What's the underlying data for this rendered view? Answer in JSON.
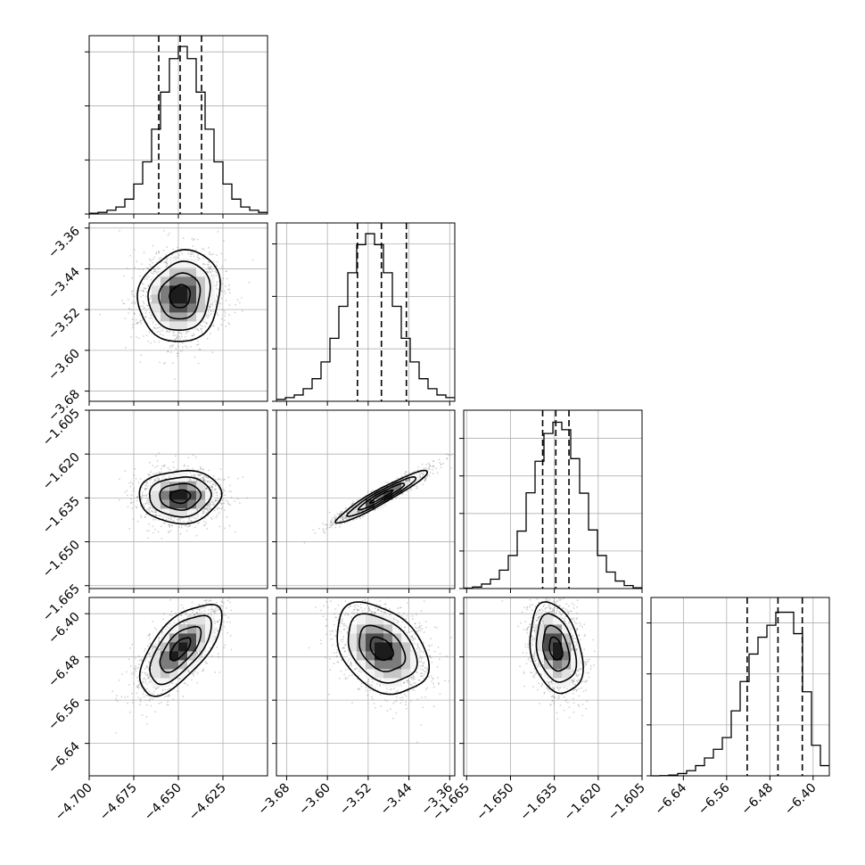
{
  "chart_data": {
    "type": "corner",
    "grid": true,
    "parameters": [
      {
        "range": [
          -4.7,
          -4.6
        ],
        "ticks": [
          -4.7,
          -4.675,
          -4.65,
          -4.625
        ],
        "tick_labels": [
          "−4.700",
          "−4.675",
          "−4.650",
          "−4.625"
        ],
        "mean": -4.649,
        "sd": 0.0115,
        "quantiles": [
          -4.661,
          -4.649,
          -4.637
        ]
      },
      {
        "range": [
          -3.7,
          -3.35
        ],
        "ticks": [
          -3.68,
          -3.6,
          -3.52,
          -3.44,
          -3.36
        ],
        "tick_labels": [
          "−3.68",
          "−3.60",
          "−3.52",
          "−3.44",
          "−3.36"
        ],
        "mean": -3.494,
        "sd": 0.045,
        "quantiles": [
          -3.541,
          -3.494,
          -3.445
        ]
      },
      {
        "range": [
          -1.666,
          -1.605
        ],
        "ticks": [
          -1.665,
          -1.65,
          -1.635,
          -1.62,
          -1.605
        ],
        "tick_labels": [
          "−1.665",
          "−1.650",
          "−1.635",
          "−1.620",
          "−1.605"
        ],
        "mean": -1.6345,
        "sd": 0.0045,
        "quantiles": [
          -1.639,
          -1.6345,
          -1.63
        ]
      },
      {
        "range": [
          -6.7,
          -6.37
        ],
        "ticks": [
          -6.64,
          -6.56,
          -6.48,
          -6.4
        ],
        "tick_labels": [
          "−6.64",
          "−6.56",
          "−6.48",
          "−6.40"
        ],
        "mean": -6.465,
        "sd": 0.042,
        "quantiles": [
          -6.522,
          -6.465,
          -6.42
        ]
      }
    ],
    "histograms": [
      {
        "param": 0,
        "bin_edges": [
          -4.7,
          -4.695,
          -4.69,
          -4.685,
          -4.68,
          -4.675,
          -4.67,
          -4.665,
          -4.66,
          -4.655,
          -4.65,
          -4.645,
          -4.64,
          -4.635,
          -4.63,
          -4.625,
          -4.62,
          -4.615,
          -4.61,
          -4.605,
          -4.6
        ],
        "counts": [
          3,
          6,
          14,
          26,
          55,
          111,
          193,
          314,
          451,
          575,
          620,
          575,
          451,
          314,
          193,
          111,
          55,
          26,
          14,
          6
        ],
        "ylim": [
          0,
          660
        ],
        "ticks": [
          0,
          200,
          400,
          600
        ]
      },
      {
        "param": 1,
        "bin_edges": [
          -3.7,
          -3.6825,
          -3.665,
          -3.6475,
          -3.63,
          -3.6125,
          -3.595,
          -3.5775,
          -3.56,
          -3.5425,
          -3.525,
          -3.5075,
          -3.49,
          -3.4725,
          -3.455,
          -3.4375,
          -3.42,
          -3.4025,
          -3.385,
          -3.3675,
          -3.35
        ],
        "counts": [
          7,
          14,
          24,
          48,
          86,
          150,
          240,
          362,
          490,
          597,
          639,
          597,
          490,
          362,
          240,
          150,
          86,
          48,
          24,
          14
        ],
        "ylim": [
          0,
          680
        ],
        "ticks": [
          0,
          200,
          400,
          600
        ]
      },
      {
        "param": 2,
        "bin_edges": [
          -1.666,
          -1.66295,
          -1.6599,
          -1.65685,
          -1.6538,
          -1.65075,
          -1.6477,
          -1.64465,
          -1.6416,
          -1.63855,
          -1.6355,
          -1.63245,
          -1.6294,
          -1.62635,
          -1.6233,
          -1.62025,
          -1.6172,
          -1.61415,
          -1.6111,
          -1.60805,
          -1.605
        ],
        "counts": [
          2,
          8,
          24,
          50,
          98,
          176,
          306,
          510,
          678,
          826,
          886,
          846,
          692,
          508,
          312,
          176,
          88,
          40,
          16,
          4
        ],
        "ylim": [
          0,
          950
        ],
        "ticks": [
          0,
          200,
          400,
          600,
          800
        ]
      },
      {
        "param": 3,
        "bin_edges": [
          -6.7,
          -6.6835,
          -6.667,
          -6.6505,
          -6.634,
          -6.6175,
          -6.601,
          -6.5845,
          -6.568,
          -6.5515,
          -6.535,
          -6.5185,
          -6.502,
          -6.4855,
          -6.469,
          -6.4525,
          -6.436,
          -6.4195,
          -6.403,
          -6.3865,
          -6.37
        ],
        "counts": [
          0,
          1,
          3,
          9,
          20,
          40,
          70,
          104,
          150,
          255,
          370,
          478,
          544,
          591,
          642,
          642,
          558,
          330,
          120,
          40
        ],
        "ylim": [
          0,
          700
        ],
        "ticks": [
          0,
          200,
          400,
          600
        ]
      }
    ],
    "pairs": [
      {
        "x_param": 0,
        "y_param": 1,
        "rho": 0.1
      },
      {
        "x_param": 0,
        "y_param": 2,
        "rho": 0.04
      },
      {
        "x_param": 1,
        "y_param": 2,
        "rho": 0.95
      },
      {
        "x_param": 0,
        "y_param": 3,
        "rho": 0.65
      },
      {
        "x_param": 1,
        "y_param": 3,
        "rho": -0.35
      },
      {
        "x_param": 2,
        "y_param": 3,
        "rho": -0.3
      }
    ],
    "contour_levels_sigma": [
      0.5,
      1.0,
      1.5,
      2.0
    ],
    "colors": {
      "hist": "#000000",
      "contour": "#000000",
      "points": "#7f7f7f",
      "grid": "#b0b0b0"
    }
  }
}
